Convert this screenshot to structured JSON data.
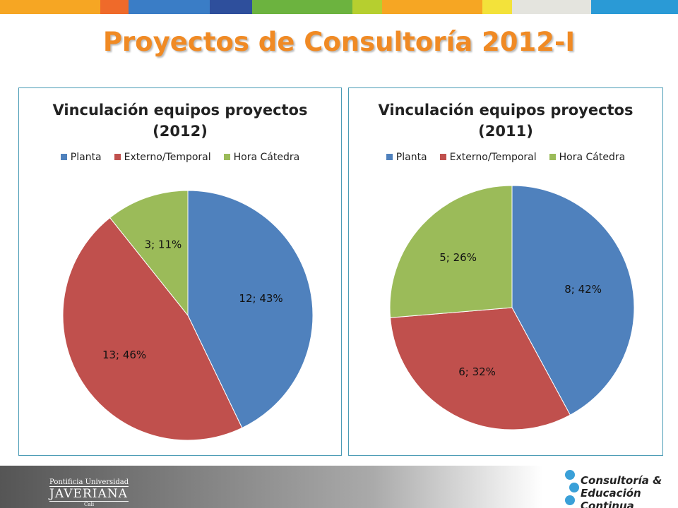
{
  "slide": {
    "title": "Proyectos de Consultoría 2012-I"
  },
  "chart_data": [
    {
      "type": "pie",
      "title": "Vinculación equipos proyectos (2012)",
      "categories": [
        "Planta",
        "Externo/Temporal",
        "Hora Cátedra"
      ],
      "values": [
        12,
        13,
        3
      ],
      "value_labels": [
        "12; 43%",
        "13; 46%",
        "3; 11%"
      ],
      "colors": [
        "#4f81bd",
        "#c0504d",
        "#9bbb59"
      ],
      "legend": "top"
    },
    {
      "type": "pie",
      "title": "Vinculación equipos proyectos (2011)",
      "categories": [
        "Planta",
        "Externo/Temporal",
        "Hora Cátedra"
      ],
      "values": [
        8,
        6,
        5
      ],
      "value_labels": [
        "8; 42%",
        "6; 32%",
        "5; 26%"
      ],
      "colors": [
        "#4f81bd",
        "#c0504d",
        "#9bbb59"
      ],
      "legend": "top"
    }
  ],
  "footer": {
    "university_line1": "Pontificia Universidad",
    "university_name": "JAVERIANA",
    "city": "Cali",
    "unit_line1": "Consultoría &",
    "unit_line2": "Educación Continua"
  }
}
